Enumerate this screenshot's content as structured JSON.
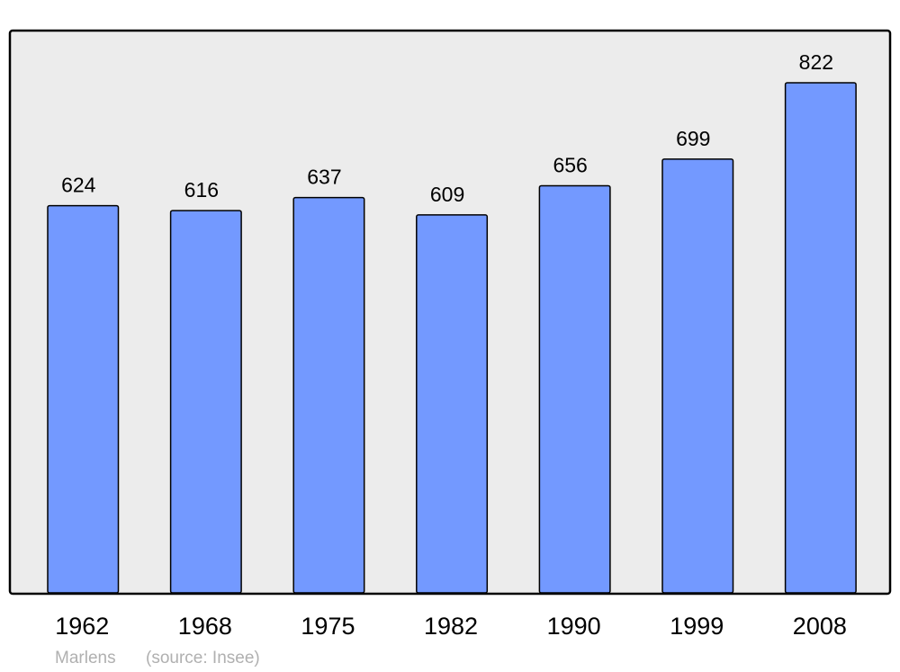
{
  "chart_data": {
    "type": "bar",
    "categories": [
      "1962",
      "1968",
      "1975",
      "1982",
      "1990",
      "1999",
      "2008"
    ],
    "values": [
      624,
      616,
      637,
      609,
      656,
      699,
      822
    ],
    "data_labels": [
      "624",
      "616",
      "637",
      "609",
      "656",
      "699",
      "822"
    ],
    "title": "",
    "xlabel": "",
    "ylabel": "",
    "ylim": [
      0,
      822
    ],
    "grid": false,
    "legend": "none",
    "colors": {
      "bar": "#7399ff",
      "plot_background": "#ececec",
      "frame": "#000000",
      "footer_text": "#b0b0b0"
    }
  },
  "footer": {
    "place": "Marlens",
    "source": "(source: Insee)"
  }
}
